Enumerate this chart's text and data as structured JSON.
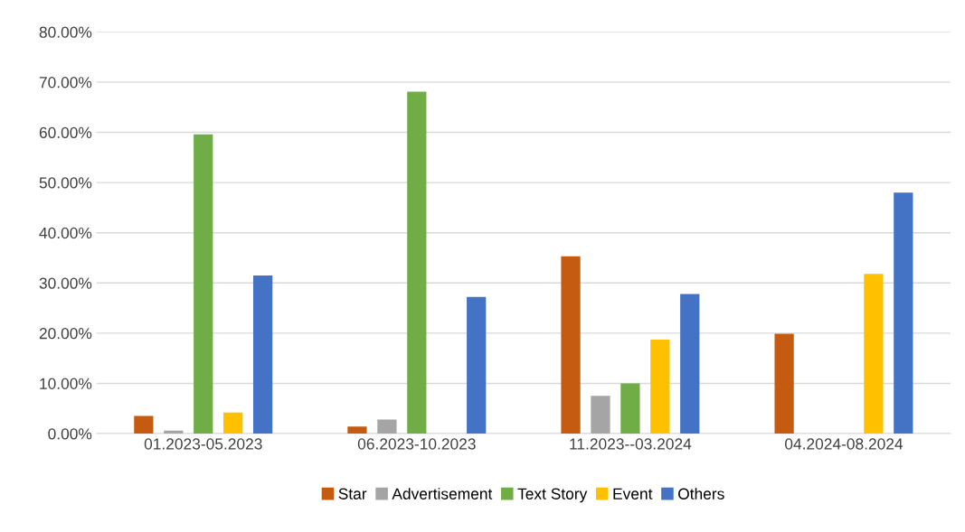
{
  "chart_data": {
    "type": "bar",
    "categories": [
      "01.2023-05.2023",
      "06.2023-10.2023",
      "11.2023--03.2024",
      "04.2024-08.2024"
    ],
    "series": [
      {
        "name": "Star",
        "color": "#c55a11",
        "values": [
          3.5,
          1.4,
          35.3,
          19.9
        ]
      },
      {
        "name": "Advertisement",
        "color": "#a5a5a5",
        "values": [
          0.6,
          2.8,
          7.5,
          null
        ]
      },
      {
        "name": "Text Story",
        "color": "#70ad47",
        "values": [
          59.6,
          68.1,
          10.0,
          null
        ]
      },
      {
        "name": "Event",
        "color": "#ffc000",
        "values": [
          4.2,
          null,
          18.7,
          31.8
        ]
      },
      {
        "name": "Others",
        "color": "#4472c4",
        "values": [
          31.5,
          27.2,
          27.8,
          48.0
        ]
      }
    ],
    "ylim": [
      0,
      80
    ],
    "yticks": [
      {
        "value": 0,
        "label": "0.00%"
      },
      {
        "value": 10,
        "label": "10.00%"
      },
      {
        "value": 20,
        "label": "20.00%"
      },
      {
        "value": 30,
        "label": "30.00%"
      },
      {
        "value": 40,
        "label": "40.00%"
      },
      {
        "value": 50,
        "label": "50.00%"
      },
      {
        "value": 60,
        "label": "60.00%"
      },
      {
        "value": 70,
        "label": "70.00%"
      },
      {
        "value": 80,
        "label": "80.00%"
      }
    ],
    "grid": "y",
    "legend": "bottom"
  }
}
